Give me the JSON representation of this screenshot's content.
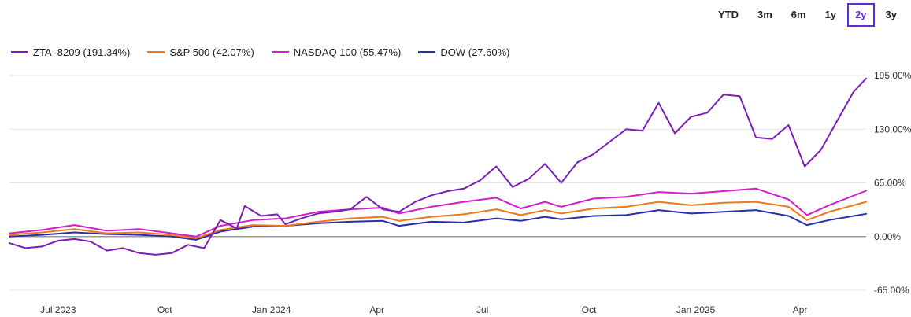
{
  "range_buttons": [
    {
      "label": "YTD",
      "active": false
    },
    {
      "label": "3m",
      "active": false
    },
    {
      "label": "6m",
      "active": false
    },
    {
      "label": "1y",
      "active": false
    },
    {
      "label": "2y",
      "active": true
    },
    {
      "label": "3y",
      "active": false
    }
  ],
  "chart_data": {
    "type": "line",
    "y_unit": "%",
    "ylim": [
      -65,
      195
    ],
    "y_ticks": [
      "195.00%",
      "130.00%",
      "65.00%",
      "0.00%",
      "-65.00%"
    ],
    "y_tick_values": [
      195,
      130,
      65,
      0,
      -65
    ],
    "x_ticks": [
      "Jul 2023",
      "Oct",
      "Jan 2024",
      "Apr",
      "Jul",
      "Oct",
      "Jan 2025",
      "Apr"
    ],
    "x_tick_dates": [
      "2023-07-01",
      "2023-10-01",
      "2024-01-01",
      "2024-04-01",
      "2024-07-01",
      "2024-10-01",
      "2025-01-01",
      "2025-04-01"
    ],
    "x_range": [
      "2023-05-20",
      "2025-05-28"
    ],
    "grid": "horizontal",
    "legend_position": "top-left",
    "series": [
      {
        "name": "ZTA -8209 (191.34%)",
        "color": "#7b1fb8",
        "points": [
          [
            "2023-05-20",
            -8
          ],
          [
            "2023-06-03",
            -14
          ],
          [
            "2023-06-17",
            -12
          ],
          [
            "2023-07-01",
            -5
          ],
          [
            "2023-07-15",
            -3
          ],
          [
            "2023-07-29",
            -6
          ],
          [
            "2023-08-12",
            -17
          ],
          [
            "2023-08-26",
            -14
          ],
          [
            "2023-09-09",
            -20
          ],
          [
            "2023-09-23",
            -22
          ],
          [
            "2023-10-07",
            -20
          ],
          [
            "2023-10-21",
            -10
          ],
          [
            "2023-11-04",
            -14
          ],
          [
            "2023-11-18",
            20
          ],
          [
            "2023-12-02",
            10
          ],
          [
            "2023-12-09",
            37
          ],
          [
            "2023-12-23",
            25
          ],
          [
            "2024-01-06",
            27
          ],
          [
            "2024-01-13",
            15
          ],
          [
            "2024-01-27",
            22
          ],
          [
            "2024-02-10",
            28
          ],
          [
            "2024-02-24",
            30
          ],
          [
            "2024-03-09",
            33
          ],
          [
            "2024-03-23",
            48
          ],
          [
            "2024-04-06",
            33
          ],
          [
            "2024-04-20",
            30
          ],
          [
            "2024-05-04",
            42
          ],
          [
            "2024-05-18",
            50
          ],
          [
            "2024-06-01",
            55
          ],
          [
            "2024-06-15",
            58
          ],
          [
            "2024-06-29",
            68
          ],
          [
            "2024-07-13",
            85
          ],
          [
            "2024-07-27",
            60
          ],
          [
            "2024-08-10",
            70
          ],
          [
            "2024-08-24",
            88
          ],
          [
            "2024-09-07",
            65
          ],
          [
            "2024-09-21",
            90
          ],
          [
            "2024-10-05",
            100
          ],
          [
            "2024-10-19",
            115
          ],
          [
            "2024-11-02",
            130
          ],
          [
            "2024-11-16",
            128
          ],
          [
            "2024-11-30",
            162
          ],
          [
            "2024-12-14",
            125
          ],
          [
            "2024-12-28",
            145
          ],
          [
            "2025-01-11",
            150
          ],
          [
            "2025-01-25",
            172
          ],
          [
            "2025-02-08",
            170
          ],
          [
            "2025-02-22",
            120
          ],
          [
            "2025-03-08",
            118
          ],
          [
            "2025-03-22",
            135
          ],
          [
            "2025-04-05",
            85
          ],
          [
            "2025-04-19",
            105
          ],
          [
            "2025-05-03",
            140
          ],
          [
            "2025-05-17",
            175
          ],
          [
            "2025-05-28",
            191.34
          ]
        ]
      },
      {
        "name": "S&P 500 (42.07%)",
        "color": "#f07818",
        "points": [
          [
            "2023-05-20",
            2
          ],
          [
            "2023-06-17",
            5
          ],
          [
            "2023-07-15",
            9
          ],
          [
            "2023-08-12",
            4
          ],
          [
            "2023-09-09",
            5
          ],
          [
            "2023-10-07",
            2
          ],
          [
            "2023-10-28",
            -2
          ],
          [
            "2023-11-18",
            8
          ],
          [
            "2023-12-16",
            14
          ],
          [
            "2024-01-13",
            13
          ],
          [
            "2024-02-10",
            18
          ],
          [
            "2024-03-09",
            22
          ],
          [
            "2024-04-06",
            24
          ],
          [
            "2024-04-20",
            19
          ],
          [
            "2024-05-18",
            24
          ],
          [
            "2024-06-15",
            27
          ],
          [
            "2024-07-13",
            33
          ],
          [
            "2024-08-03",
            26
          ],
          [
            "2024-08-24",
            32
          ],
          [
            "2024-09-07",
            28
          ],
          [
            "2024-10-05",
            34
          ],
          [
            "2024-11-02",
            36
          ],
          [
            "2024-11-30",
            42
          ],
          [
            "2024-12-28",
            38
          ],
          [
            "2025-01-25",
            41
          ],
          [
            "2025-02-22",
            42
          ],
          [
            "2025-03-22",
            36
          ],
          [
            "2025-04-07",
            20
          ],
          [
            "2025-04-26",
            30
          ],
          [
            "2025-05-28",
            42.07
          ]
        ]
      },
      {
        "name": "NASDAQ 100 (55.47%)",
        "color": "#d41ecb",
        "points": [
          [
            "2023-05-20",
            4
          ],
          [
            "2023-06-17",
            8
          ],
          [
            "2023-07-15",
            14
          ],
          [
            "2023-08-12",
            7
          ],
          [
            "2023-09-09",
            9
          ],
          [
            "2023-10-07",
            4
          ],
          [
            "2023-10-28",
            0
          ],
          [
            "2023-11-18",
            13
          ],
          [
            "2023-12-16",
            20
          ],
          [
            "2024-01-13",
            22
          ],
          [
            "2024-02-10",
            30
          ],
          [
            "2024-03-09",
            33
          ],
          [
            "2024-04-06",
            35
          ],
          [
            "2024-04-20",
            28
          ],
          [
            "2024-05-18",
            36
          ],
          [
            "2024-06-15",
            42
          ],
          [
            "2024-07-13",
            47
          ],
          [
            "2024-08-03",
            34
          ],
          [
            "2024-08-24",
            42
          ],
          [
            "2024-09-07",
            36
          ],
          [
            "2024-10-05",
            46
          ],
          [
            "2024-11-02",
            48
          ],
          [
            "2024-11-30",
            54
          ],
          [
            "2024-12-28",
            52
          ],
          [
            "2025-01-25",
            55
          ],
          [
            "2025-02-22",
            58
          ],
          [
            "2025-03-22",
            45
          ],
          [
            "2025-04-07",
            26
          ],
          [
            "2025-04-26",
            38
          ],
          [
            "2025-05-28",
            55.47
          ]
        ]
      },
      {
        "name": "DOW (27.60%)",
        "color": "#2a2ea8",
        "points": [
          [
            "2023-05-20",
            0
          ],
          [
            "2023-06-17",
            2
          ],
          [
            "2023-07-15",
            5
          ],
          [
            "2023-08-12",
            3
          ],
          [
            "2023-09-09",
            2
          ],
          [
            "2023-10-07",
            0
          ],
          [
            "2023-10-28",
            -4
          ],
          [
            "2023-11-18",
            6
          ],
          [
            "2023-12-16",
            12
          ],
          [
            "2024-01-13",
            13
          ],
          [
            "2024-02-10",
            16
          ],
          [
            "2024-03-09",
            18
          ],
          [
            "2024-04-06",
            19
          ],
          [
            "2024-04-20",
            13
          ],
          [
            "2024-05-18",
            18
          ],
          [
            "2024-06-15",
            17
          ],
          [
            "2024-07-13",
            22
          ],
          [
            "2024-08-03",
            19
          ],
          [
            "2024-08-24",
            24
          ],
          [
            "2024-09-07",
            21
          ],
          [
            "2024-10-05",
            25
          ],
          [
            "2024-11-02",
            26
          ],
          [
            "2024-11-30",
            32
          ],
          [
            "2024-12-28",
            28
          ],
          [
            "2025-01-25",
            30
          ],
          [
            "2025-02-22",
            32
          ],
          [
            "2025-03-22",
            25
          ],
          [
            "2025-04-07",
            14
          ],
          [
            "2025-04-26",
            20
          ],
          [
            "2025-05-28",
            27.6
          ]
        ]
      }
    ]
  }
}
